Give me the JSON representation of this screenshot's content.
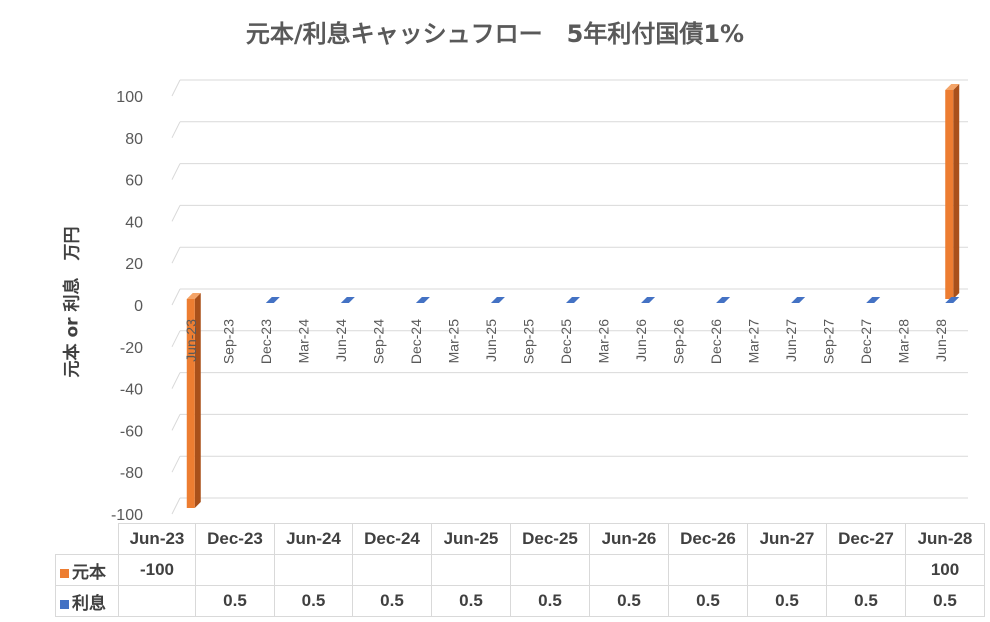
{
  "chart_data": {
    "type": "bar",
    "title": "元本/利息キャッシュフロー　5年利付国債1%",
    "ylabel": "元本 or 利息　万円",
    "ylim": [
      -100,
      100
    ],
    "yticks": [
      100,
      80,
      60,
      40,
      20,
      0,
      -20,
      -40,
      -60,
      -80,
      -100
    ],
    "grid": true,
    "categories": [
      "Jun-23",
      "Sep-23",
      "Dec-23",
      "Mar-24",
      "Jun-24",
      "Sep-24",
      "Dec-24",
      "Mar-25",
      "Jun-25",
      "Sep-25",
      "Dec-25",
      "Mar-26",
      "Jun-26",
      "Sep-26",
      "Dec-26",
      "Mar-27",
      "Jun-27",
      "Sep-27",
      "Dec-27",
      "Mar-28",
      "Jun-28"
    ],
    "series": [
      {
        "name": "元本",
        "color": "#ed7d31",
        "values": [
          -100,
          null,
          null,
          null,
          null,
          null,
          null,
          null,
          null,
          null,
          null,
          null,
          null,
          null,
          null,
          null,
          null,
          null,
          null,
          null,
          100
        ]
      },
      {
        "name": "利息",
        "color": "#4472c4",
        "values": [
          null,
          null,
          0.5,
          null,
          0.5,
          null,
          0.5,
          null,
          0.5,
          null,
          0.5,
          null,
          0.5,
          null,
          0.5,
          null,
          0.5,
          null,
          0.5,
          null,
          0.5
        ]
      }
    ],
    "table": {
      "columns": [
        "Jun-23",
        "Dec-23",
        "Jun-24",
        "Dec-24",
        "Jun-25",
        "Dec-25",
        "Jun-26",
        "Dec-26",
        "Jun-27",
        "Dec-27",
        "Jun-28"
      ],
      "rows": [
        {
          "name": "元本",
          "cells": [
            "-100",
            "",
            "",
            "",
            "",
            "",
            "",
            "",
            "",
            "",
            "100"
          ]
        },
        {
          "name": "利息",
          "cells": [
            "",
            "0.5",
            "0.5",
            "0.5",
            "0.5",
            "0.5",
            "0.5",
            "0.5",
            "0.5",
            "0.5",
            "0.5"
          ]
        }
      ]
    }
  }
}
